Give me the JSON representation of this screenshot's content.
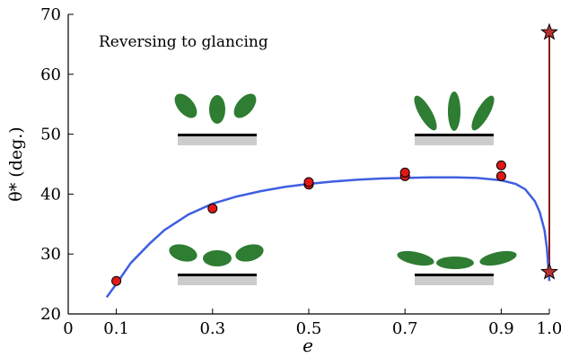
{
  "chart_data": {
    "type": "scatter",
    "xlabel": "e",
    "ylabel": "θ* (deg.)",
    "annotation": "Reversing to glancing",
    "xlim": [
      0,
      1.0
    ],
    "ylim": [
      20,
      70
    ],
    "x_ticks": [
      0,
      0.1,
      0.3,
      0.5,
      0.7,
      0.9,
      1.0
    ],
    "x_tick_labels": [
      "0",
      "0.1",
      "0.3",
      "0.5",
      "0.7",
      "0.9",
      "1.0"
    ],
    "y_ticks": [
      20,
      30,
      40,
      50,
      60,
      70
    ],
    "y_tick_labels": [
      "20",
      "30",
      "40",
      "50",
      "60",
      "70"
    ],
    "grid": false,
    "colors": {
      "curve": "#3f5fe0",
      "points": "#e01818",
      "star": "#b83232",
      "vline": "#8a1a1a",
      "ellipse": "#2e7d32",
      "substrate": "#000000",
      "substrate_shadow": "#cccccc"
    },
    "series": [
      {
        "type": "scatter",
        "points": [
          [
            0.1,
            25.5
          ],
          [
            0.3,
            37.6
          ],
          [
            0.5,
            41.6
          ],
          [
            0.5,
            42.0
          ],
          [
            0.7,
            43.0
          ],
          [
            0.7,
            43.6
          ],
          [
            0.9,
            43.0
          ],
          [
            0.9,
            44.8
          ]
        ]
      },
      {
        "type": "line",
        "x": [
          0.08,
          0.1,
          0.13,
          0.17,
          0.2,
          0.25,
          0.3,
          0.35,
          0.4,
          0.45,
          0.5,
          0.55,
          0.6,
          0.65,
          0.7,
          0.75,
          0.8,
          0.85,
          0.9,
          0.93,
          0.95,
          0.97,
          0.98,
          0.99,
          0.995,
          1.0
        ],
        "y": [
          22.8,
          25.0,
          28.5,
          31.8,
          34.0,
          36.6,
          38.4,
          39.6,
          40.5,
          41.2,
          41.7,
          42.1,
          42.4,
          42.6,
          42.7,
          42.8,
          42.8,
          42.7,
          42.3,
          41.7,
          40.8,
          38.8,
          37.0,
          34.0,
          31.0,
          25.5
        ]
      },
      {
        "type": "vline",
        "x": 1.0,
        "y": [
          27.0,
          67.0
        ]
      },
      {
        "type": "star",
        "points": [
          [
            1.0,
            27.0
          ],
          [
            1.0,
            67.0
          ]
        ]
      }
    ]
  }
}
